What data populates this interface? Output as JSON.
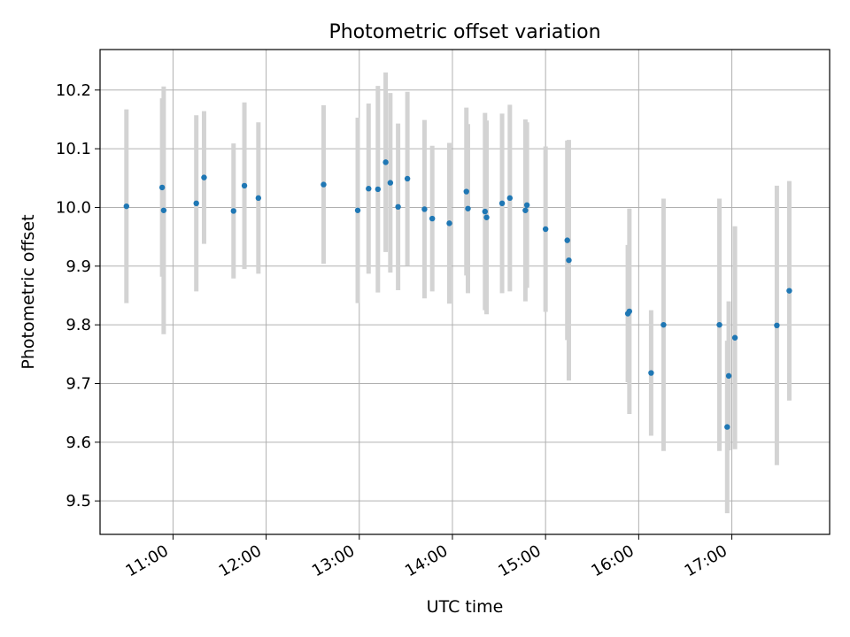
{
  "chart_data": {
    "type": "scatter",
    "title": "Photometric offset variation",
    "xlabel": "UTC time",
    "ylabel": "Photometric offset",
    "x_axis_type": "time",
    "xlim": [
      "10:13",
      "18:03"
    ],
    "ylim": [
      9.443,
      10.269
    ],
    "grid": true,
    "legend": "none",
    "x_ticks": [
      "11:00",
      "12:00",
      "13:00",
      "14:00",
      "15:00",
      "16:00",
      "17:00"
    ],
    "y_ticks": [
      9.5,
      9.6,
      9.7,
      9.8,
      9.9,
      10.0,
      10.1,
      10.2
    ],
    "y_tick_labels": [
      "9.5",
      "9.6",
      "9.7",
      "9.8",
      "9.9",
      "10.0",
      "10.1",
      "10.2"
    ],
    "colors": {
      "point": "#1f77b4",
      "error_bar": "#d3d3d3",
      "grid": "#b0b0b0",
      "axes": "#000000"
    },
    "points": [
      {
        "x": "10:30",
        "y": 10.002,
        "yerr": 0.165
      },
      {
        "x": "10:53",
        "y": 10.034,
        "yerr": 0.152
      },
      {
        "x": "10:54",
        "y": 9.995,
        "yerr": 0.211
      },
      {
        "x": "11:15",
        "y": 10.007,
        "yerr": 0.15
      },
      {
        "x": "11:20",
        "y": 10.051,
        "yerr": 0.113
      },
      {
        "x": "11:39",
        "y": 9.994,
        "yerr": 0.115
      },
      {
        "x": "11:46",
        "y": 10.037,
        "yerr": 0.142
      },
      {
        "x": "11:55",
        "y": 10.016,
        "yerr": 0.129
      },
      {
        "x": "12:37",
        "y": 10.039,
        "yerr": 0.135
      },
      {
        "x": "12:59",
        "y": 9.995,
        "yerr": 0.158
      },
      {
        "x": "13:06",
        "y": 10.032,
        "yerr": 0.145
      },
      {
        "x": "13:12",
        "y": 10.031,
        "yerr": 0.176
      },
      {
        "x": "13:17",
        "y": 10.077,
        "yerr": 0.153
      },
      {
        "x": "13:20",
        "y": 10.042,
        "yerr": 0.153
      },
      {
        "x": "13:25",
        "y": 10.001,
        "yerr": 0.142
      },
      {
        "x": "13:31",
        "y": 10.049,
        "yerr": 0.148
      },
      {
        "x": "13:42",
        "y": 9.997,
        "yerr": 0.152
      },
      {
        "x": "13:47",
        "y": 9.981,
        "yerr": 0.124
      },
      {
        "x": "13:58",
        "y": 9.973,
        "yerr": 0.137
      },
      {
        "x": "14:09",
        "y": 10.027,
        "yerr": 0.143
      },
      {
        "x": "14:10",
        "y": 9.998,
        "yerr": 0.144
      },
      {
        "x": "14:21",
        "y": 9.993,
        "yerr": 0.168
      },
      {
        "x": "14:22",
        "y": 9.983,
        "yerr": 0.165
      },
      {
        "x": "14:32",
        "y": 10.007,
        "yerr": 0.153
      },
      {
        "x": "14:37",
        "y": 10.016,
        "yerr": 0.159
      },
      {
        "x": "14:47",
        "y": 9.995,
        "yerr": 0.155
      },
      {
        "x": "14:48",
        "y": 10.004,
        "yerr": 0.141
      },
      {
        "x": "15:00",
        "y": 9.963,
        "yerr": 0.141
      },
      {
        "x": "15:14",
        "y": 9.944,
        "yerr": 0.17
      },
      {
        "x": "15:15",
        "y": 9.91,
        "yerr": 0.205
      },
      {
        "x": "15:53",
        "y": 9.819,
        "yerr": 0.117
      },
      {
        "x": "15:54",
        "y": 9.823,
        "yerr": 0.175
      },
      {
        "x": "16:08",
        "y": 9.718,
        "yerr": 0.107
      },
      {
        "x": "16:16",
        "y": 9.8,
        "yerr": 0.215
      },
      {
        "x": "16:52",
        "y": 9.8,
        "yerr": 0.215
      },
      {
        "x": "16:57",
        "y": 9.626,
        "yerr": 0.147
      },
      {
        "x": "16:58",
        "y": 9.713,
        "yerr": 0.127
      },
      {
        "x": "17:02",
        "y": 9.778,
        "yerr": 0.19
      },
      {
        "x": "17:29",
        "y": 9.799,
        "yerr": 0.238
      },
      {
        "x": "17:37",
        "y": 9.858,
        "yerr": 0.187
      }
    ]
  }
}
